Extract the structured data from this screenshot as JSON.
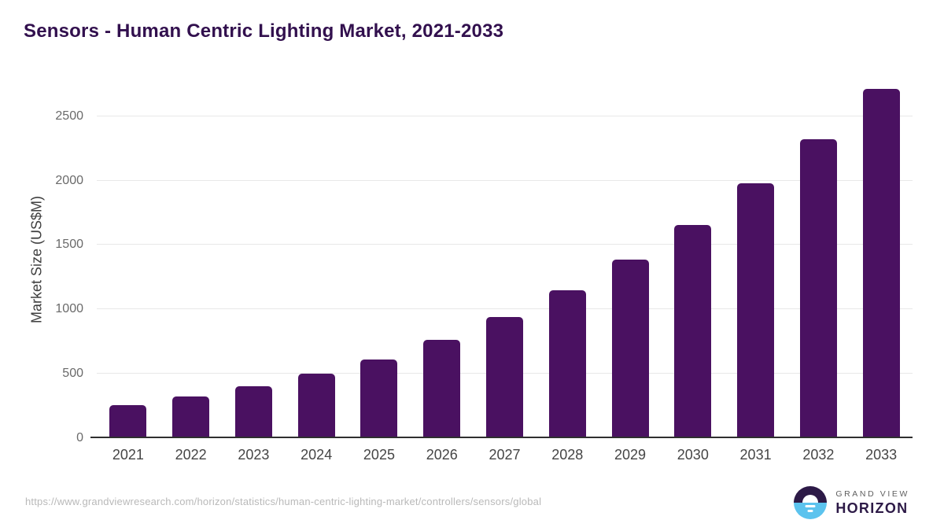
{
  "chart": {
    "title": "Sensors - Human Centric Lighting Market, 2021-2033",
    "ylabel": "Market Size (US$M)"
  },
  "chart_data": {
    "type": "bar",
    "title": "Sensors - Human Centric Lighting Market, 2021-2033",
    "xlabel": "",
    "ylabel": "Market Size (US$M)",
    "categories": [
      "2021",
      "2022",
      "2023",
      "2024",
      "2025",
      "2026",
      "2027",
      "2028",
      "2029",
      "2030",
      "2031",
      "2032",
      "2033"
    ],
    "values": [
      259,
      324,
      403,
      500,
      614,
      766,
      941,
      1148,
      1385,
      1657,
      1977,
      2321,
      2715
    ],
    "yticks": [
      0,
      500,
      1000,
      1500,
      2000,
      2500
    ],
    "ylim": [
      0,
      2800
    ],
    "grid": true,
    "legend": false,
    "bar_color": "#4a1161"
  },
  "footer": {
    "source_url": "https://www.grandviewresearch.com/horizon/statistics/human-centric-lighting-market/controllers/sensors/global",
    "brand_top": "GRAND VIEW",
    "brand_bottom": "HORIZON"
  },
  "colors": {
    "title_text": "#32104e",
    "bar": "#4a1161",
    "logo_dark": "#2d1a47",
    "logo_blue": "#5cc3ee"
  }
}
